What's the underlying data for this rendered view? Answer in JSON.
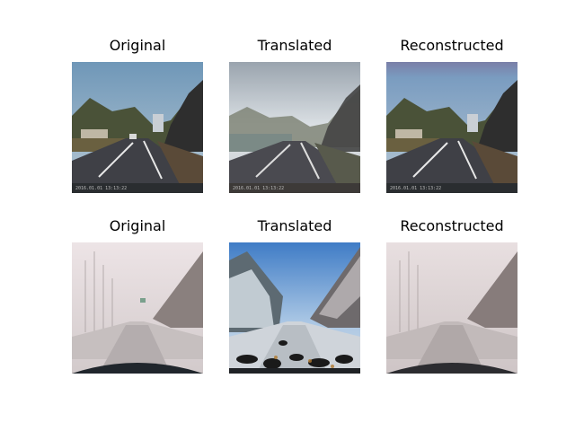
{
  "rows": [
    {
      "panels": [
        {
          "title": "Original",
          "scene": "clear-highway",
          "variant": "sharp"
        },
        {
          "title": "Translated",
          "scene": "clear-highway",
          "variant": "foggy"
        },
        {
          "title": "Reconstructed",
          "scene": "clear-highway",
          "variant": "sharp"
        }
      ]
    },
    {
      "panels": [
        {
          "title": "Original",
          "scene": "snowy-fog-road",
          "variant": "fog"
        },
        {
          "title": "Translated",
          "scene": "snowy-fog-road",
          "variant": "clear-sky"
        },
        {
          "title": "Reconstructed",
          "scene": "snowy-fog-road",
          "variant": "fog"
        }
      ]
    }
  ],
  "dashcam_timestamp": "2016.01.01 13:13:22",
  "colors": {
    "sky_clear": "#6f97b8",
    "sky_blue": "#3f7cc6",
    "fog": "#d9d2d0",
    "road_dark": "#3f4046",
    "snow": "#e6e2e2"
  }
}
